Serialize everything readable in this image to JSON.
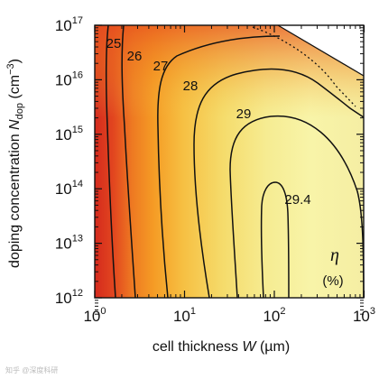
{
  "chart_data": {
    "type": "heatmap",
    "subtype": "contour",
    "x_axis": {
      "label_prefix": "cell thickness ",
      "label_var": "W",
      "label_unit": " (µm)",
      "scale": "log",
      "range": [
        1,
        1500
      ],
      "ticks": [
        {
          "base": "10",
          "exp": "0",
          "value": 1
        },
        {
          "base": "10",
          "exp": "1",
          "value": 10
        },
        {
          "base": "10",
          "exp": "2",
          "value": 100
        },
        {
          "base": "10",
          "exp": "3",
          "value": 1000
        }
      ]
    },
    "y_axis": {
      "label_prefix": "doping concentration ",
      "label_var": "N",
      "label_sub": "dop",
      "label_unit": " (cm",
      "label_unit_sup": "−3",
      "label_unit_close": ")",
      "scale": "log",
      "range": [
        500000000000,
        100000000000000000
      ],
      "ticks": [
        {
          "base": "10",
          "exp": "12",
          "value": 1000000000000.0
        },
        {
          "base": "10",
          "exp": "13",
          "value": 10000000000000.0
        },
        {
          "base": "10",
          "exp": "14",
          "value": 100000000000000.0
        },
        {
          "base": "10",
          "exp": "15",
          "value": 1000000000000000.0
        },
        {
          "base": "10",
          "exp": "16",
          "value": 1e+16
        },
        {
          "base": "10",
          "exp": "17",
          "value": 1e+17
        }
      ]
    },
    "colorbar_label": "η",
    "colorbar_unit": "(%)",
    "color_scale": {
      "low": "#d42a1e",
      "mid": "#f59c25",
      "high": "#f8f6ad"
    },
    "contours": [
      {
        "label": "25",
        "level": 25
      },
      {
        "label": "26",
        "level": 26
      },
      {
        "label": "27",
        "level": 27
      },
      {
        "label": "28",
        "level": 28
      },
      {
        "label": "29",
        "level": 29
      },
      {
        "label": "29.4",
        "level": 29.4
      }
    ],
    "dotted_boundary": true,
    "excluded_region_color": "#ffffff"
  },
  "watermark": "知乎 @深度科研"
}
